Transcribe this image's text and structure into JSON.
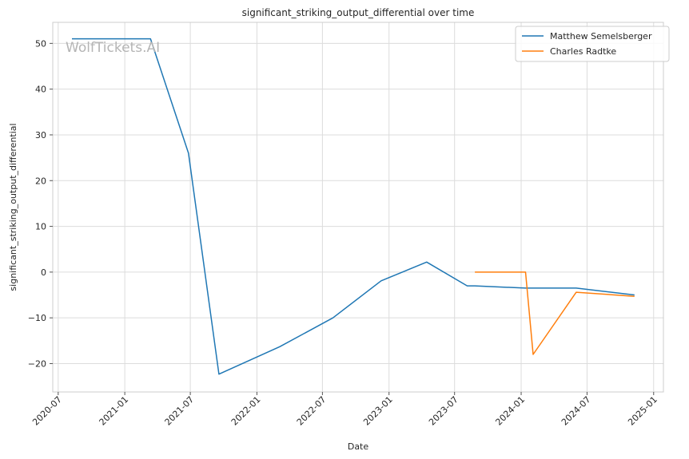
{
  "chart_data": {
    "type": "line",
    "title": "significant_striking_output_differential over time",
    "xlabel": "Date",
    "ylabel": "significant_striking_output_differential",
    "watermark": "WolfTickets.AI",
    "x_axis_type": "date",
    "xlim": [
      "2020-06-16",
      "2025-01-28"
    ],
    "ylim": [
      -26.2,
      54.6
    ],
    "x_ticks": [
      "2020-07",
      "2021-01",
      "2021-07",
      "2022-01",
      "2022-07",
      "2023-01",
      "2023-07",
      "2024-01",
      "2024-07",
      "2025-01"
    ],
    "y_ticks": [
      -20,
      -10,
      0,
      10,
      20,
      30,
      40,
      50
    ],
    "y_tick_labels": [
      "−20",
      "−10",
      "0",
      "10",
      "20",
      "30",
      "40",
      "50"
    ],
    "grid": true,
    "legend_position": "top-right",
    "series": [
      {
        "name": "Matthew Semelsberger",
        "color": "#1f77b4",
        "points": [
          [
            "2020-08-08",
            51.0
          ],
          [
            "2021-03-13",
            51.0
          ],
          [
            "2021-06-26",
            26.0
          ],
          [
            "2021-09-18",
            -22.3
          ],
          [
            "2022-03-05",
            -16.3
          ],
          [
            "2022-07-30",
            -10.0
          ],
          [
            "2022-12-10",
            -1.9
          ],
          [
            "2023-04-15",
            2.2
          ],
          [
            "2023-08-05",
            -3.0
          ],
          [
            "2023-08-26",
            -3.0
          ],
          [
            "2024-01-13",
            -3.5
          ],
          [
            "2024-06-01",
            -3.5
          ],
          [
            "2024-11-09",
            -5.0
          ]
        ]
      },
      {
        "name": "Charles Radtke",
        "color": "#ff7f0e",
        "points": [
          [
            "2023-08-26",
            0.0
          ],
          [
            "2024-01-13",
            0.0
          ],
          [
            "2024-02-03",
            -18.0
          ],
          [
            "2024-06-01",
            -4.4
          ],
          [
            "2024-11-09",
            -5.3
          ]
        ]
      }
    ]
  }
}
